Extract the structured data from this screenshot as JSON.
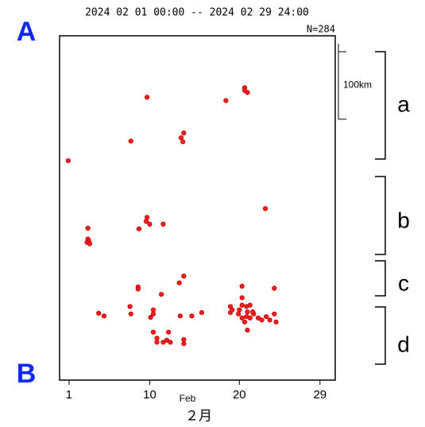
{
  "chart_data": {
    "type": "scatter",
    "title": "2024 02 01 00:00 -- 2024 02 29 24:00",
    "count_label": "N=284",
    "x_unit_label": "Feb",
    "x_label": "２月",
    "end_labels": [
      "A",
      "B"
    ],
    "segment_labels": [
      "a",
      "b",
      "c",
      "d"
    ],
    "scale_bar": {
      "value": 100,
      "label": "100km"
    },
    "xlim": [
      -0.06,
      30.7
    ],
    "xticks": [
      1,
      10,
      20,
      29
    ],
    "ylim": [
      0,
      510
    ],
    "color": "#ff2020",
    "x": [
      0.9,
      9.7,
      18.5,
      20.6,
      20.6,
      20.9,
      13.8,
      13.5,
      13.7,
      7.9,
      3.1,
      3.1,
      3.2,
      3.0,
      3.3,
      9.7,
      9.6,
      10.0,
      8.8,
      11.5,
      22.9,
      13.8,
      13.3,
      11.3,
      8.7,
      8.7,
      20.3,
      23.9,
      20.3,
      7.8,
      7.9,
      4.3,
      4.9,
      10.4,
      10.4,
      10.1,
      13.4,
      14.7,
      15.8,
      19.0,
      19.0,
      19.2,
      20.3,
      20.8,
      21.2,
      19.9,
      20.3,
      20.8,
      21.2,
      20.0,
      21.6,
      22.1,
      22.5,
      23.0,
      23.4,
      23.9,
      24.1,
      20.9,
      10.4,
      10.8,
      11.5,
      11.9,
      12.3,
      12.1,
      13.8,
      13.8,
      10.8,
      21.5,
      20.9,
      20.6
    ],
    "values": [
      325,
      419,
      414,
      433,
      429,
      426,
      366,
      359,
      353,
      354,
      225,
      209,
      206,
      204,
      202,
      241,
      235,
      231,
      224,
      231,
      254,
      154,
      144,
      127,
      138,
      135,
      139,
      136,
      122,
      109,
      98,
      99,
      95,
      104,
      98,
      93,
      95,
      95,
      100,
      109,
      100,
      104,
      111,
      109,
      111,
      98,
      92,
      94,
      92,
      104,
      98,
      92,
      89,
      94,
      89,
      98,
      86,
      74,
      71,
      56,
      56,
      59,
      56,
      71,
      60,
      54,
      62,
      101,
      101,
      86
    ]
  }
}
